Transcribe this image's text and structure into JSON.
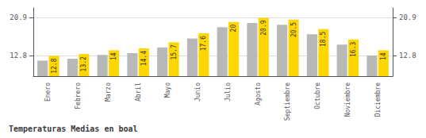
{
  "chart_data": {
    "type": "bar",
    "title": "Temperaturas Medias en boal",
    "categories": [
      "Enero",
      "Febrero",
      "Marzo",
      "Abril",
      "Mayo",
      "Junio",
      "Julio",
      "Agosto",
      "Septiembre",
      "Octubre",
      "Noviembre",
      "Diciembre"
    ],
    "series": [
      {
        "color": "#B8B8B8",
        "values": [
          11.8,
          12.2,
          13.0,
          13.4,
          14.6,
          16.5,
          18.9,
          19.8,
          19.4,
          17.4,
          15.2,
          12.9
        ]
      },
      {
        "color": "#FFD700",
        "values": [
          12.8,
          13.2,
          14.0,
          14.4,
          15.7,
          17.6,
          20.0,
          20.9,
          20.5,
          18.5,
          16.3,
          14.0
        ],
        "data_labels": true
      }
    ],
    "ylim": [
      8.5,
      23.0
    ],
    "yticks": [
      12.8,
      20.9
    ],
    "y2lim": [
      8.5,
      23.0
    ],
    "y2ticks": [
      12.8,
      20.9
    ],
    "grid": true
  }
}
